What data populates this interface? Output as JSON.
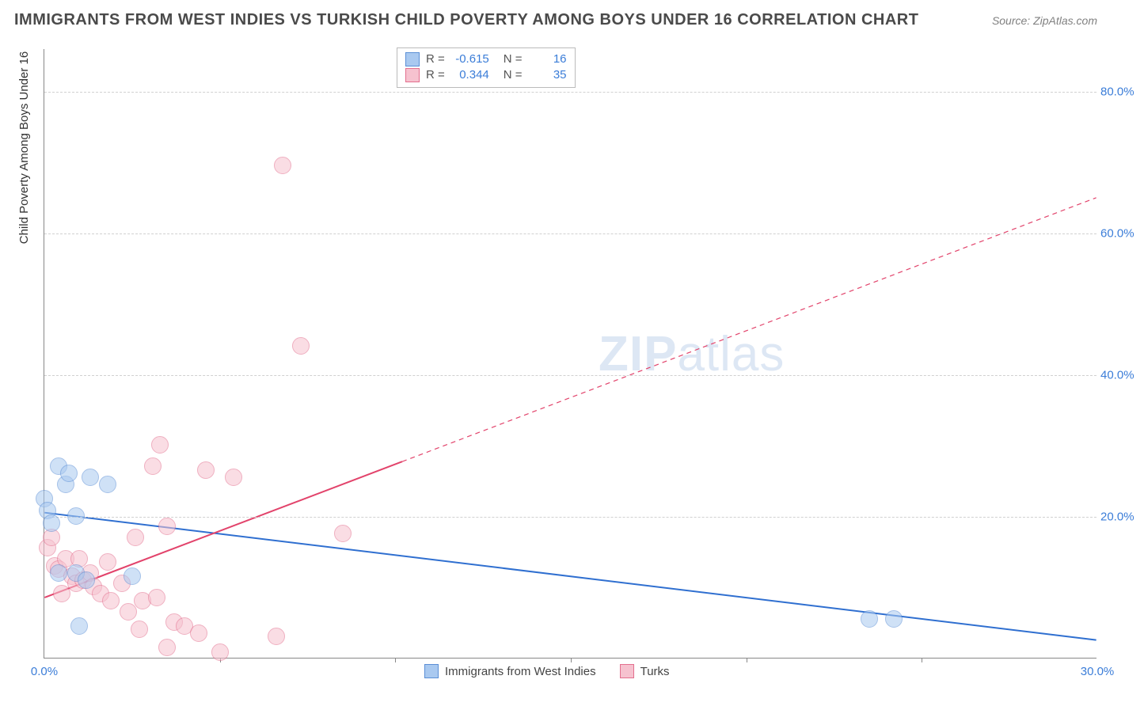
{
  "title": "IMMIGRANTS FROM WEST INDIES VS TURKISH CHILD POVERTY AMONG BOYS UNDER 16 CORRELATION CHART",
  "source": "Source: ZipAtlas.com",
  "ylabel": "Child Poverty Among Boys Under 16",
  "watermark_bold": "ZIP",
  "watermark_rest": "atlas",
  "chart": {
    "type": "scatter-with-regression",
    "x_min": 0,
    "x_max": 30,
    "y_min": 0,
    "y_max": 86,
    "x_ticks": [
      0,
      30
    ],
    "x_tick_labels": [
      "0.0%",
      "30.0%"
    ],
    "x_minor_ticks": [
      5,
      10,
      15,
      20,
      25
    ],
    "y_ticks": [
      20,
      40,
      60,
      80
    ],
    "y_tick_labels": [
      "20.0%",
      "40.0%",
      "60.0%",
      "80.0%"
    ],
    "background_color": "#ffffff",
    "grid_color": "#d0d0d0",
    "axis_color": "#888888",
    "label_color": "#3b7dd8",
    "title_color": "#4a4a4a",
    "title_fontsize": 20,
    "tick_fontsize": 15,
    "point_radius": 11,
    "point_opacity": 0.55,
    "series": [
      {
        "name": "Immigrants from West Indies",
        "color_fill": "#a9c9f0",
        "color_stroke": "#5b8fd6",
        "R": "-0.615",
        "N": "16",
        "reg_line": {
          "x1": 0,
          "y1": 20.5,
          "x2": 30,
          "y2": 2.5,
          "color": "#2f6fd0",
          "width": 2,
          "dash_after_x": null
        },
        "points": [
          [
            0.0,
            22.5
          ],
          [
            0.1,
            20.8
          ],
          [
            0.4,
            27.0
          ],
          [
            0.6,
            24.5
          ],
          [
            0.7,
            26.0
          ],
          [
            0.9,
            20.0
          ],
          [
            1.3,
            25.5
          ],
          [
            1.8,
            24.5
          ],
          [
            0.4,
            12.0
          ],
          [
            0.9,
            12.0
          ],
          [
            1.2,
            11.0
          ],
          [
            1.0,
            4.5
          ],
          [
            2.5,
            11.5
          ],
          [
            23.5,
            5.5
          ],
          [
            24.2,
            5.5
          ],
          [
            0.2,
            19.0
          ]
        ]
      },
      {
        "name": "Turks",
        "color_fill": "#f6c2cf",
        "color_stroke": "#e36f8e",
        "R": "0.344",
        "N": "35",
        "reg_line": {
          "x1": 0,
          "y1": 8.5,
          "x2": 30,
          "y2": 65.0,
          "color": "#e2436b",
          "width": 2,
          "dash_after_x": 10.2
        },
        "points": [
          [
            0.1,
            15.5
          ],
          [
            0.2,
            17.0
          ],
          [
            0.3,
            13.0
          ],
          [
            0.4,
            12.5
          ],
          [
            0.6,
            14.0
          ],
          [
            0.8,
            11.5
          ],
          [
            0.9,
            10.5
          ],
          [
            1.0,
            14.0
          ],
          [
            1.1,
            11.0
          ],
          [
            1.3,
            12.0
          ],
          [
            1.4,
            10.0
          ],
          [
            1.6,
            9.0
          ],
          [
            1.9,
            8.0
          ],
          [
            2.2,
            10.5
          ],
          [
            2.4,
            6.5
          ],
          [
            2.6,
            17.0
          ],
          [
            2.8,
            8.0
          ],
          [
            2.7,
            4.0
          ],
          [
            3.2,
            8.5
          ],
          [
            3.1,
            27.0
          ],
          [
            3.3,
            30.0
          ],
          [
            3.5,
            1.5
          ],
          [
            3.7,
            5.0
          ],
          [
            4.0,
            4.5
          ],
          [
            4.4,
            3.5
          ],
          [
            4.6,
            26.5
          ],
          [
            5.0,
            0.8
          ],
          [
            5.4,
            25.5
          ],
          [
            6.6,
            3.0
          ],
          [
            6.8,
            69.5
          ],
          [
            7.3,
            44.0
          ],
          [
            8.5,
            17.5
          ],
          [
            3.5,
            18.5
          ],
          [
            1.8,
            13.5
          ],
          [
            0.5,
            9.0
          ]
        ]
      }
    ]
  },
  "stat_labels": {
    "R": "R =",
    "N": "N ="
  },
  "legend": [
    {
      "label": "Immigrants from West Indies",
      "fill": "#a9c9f0",
      "stroke": "#5b8fd6"
    },
    {
      "label": "Turks",
      "fill": "#f6c2cf",
      "stroke": "#e36f8e"
    }
  ]
}
